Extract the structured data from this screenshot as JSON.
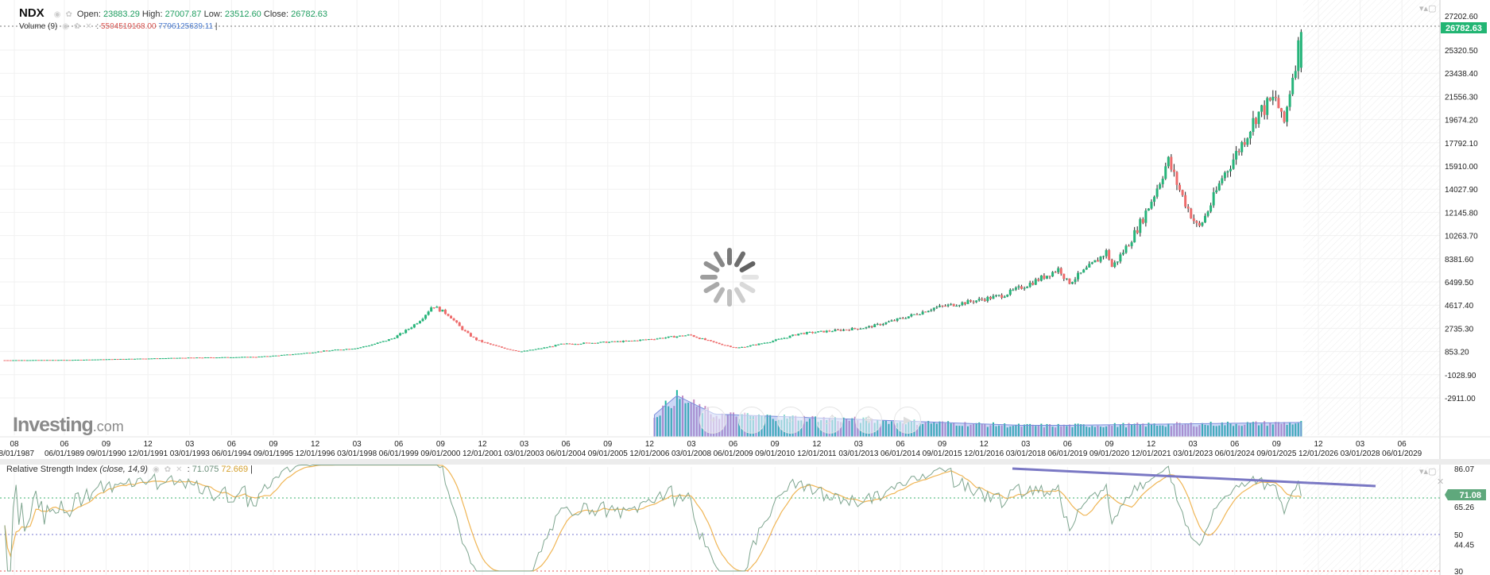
{
  "header": {
    "symbol": "NDX",
    "open_label": "Open:",
    "open": "23883.29",
    "high_label": "High:",
    "high": "27007.87",
    "low_label": "Low:",
    "low": "23512.60",
    "close_label": "Close:",
    "close": "26782.63",
    "volume_label": "Volume (9)",
    "volume_value": "5504519168.00",
    "volume_ma": "7796125639.11"
  },
  "logo": {
    "brand": "Investing",
    "suffix": ".com"
  },
  "toolbar_icons": [
    "zoom-in-icon",
    "zoom-out-icon",
    "search-icon",
    "share-icon",
    "move-icon",
    "play-icon"
  ],
  "rsi": {
    "title": "Relative Strength Index",
    "params": "(close, 14,9)",
    "value": "71.075",
    "ma": "72.669",
    "badge": "71.08"
  },
  "colors": {
    "up": "#26b47a",
    "down": "#ee6b6b",
    "rsi_line": "#7ea58f",
    "rsi_ma": "#f0b656",
    "trend": "#7a78c4",
    "badge": "#22b573"
  },
  "chart_data": {
    "type": "candlestick",
    "title": "NDX",
    "interval": "monthly",
    "price_axis_ticks": [
      "27202.60",
      "25320.50",
      "23438.40",
      "21556.30",
      "19674.20",
      "17792.10",
      "15910.00",
      "14027.90",
      "12145.80",
      "10263.70",
      "8381.60",
      "6499.50",
      "4617.40",
      "2735.30",
      "853.20",
      "-1028.90",
      "-2911.00"
    ],
    "current_price": "26782.63",
    "time_axis": [
      [
        "08",
        "08/01/1987"
      ],
      [
        "06",
        "06/01/1989"
      ],
      [
        "09",
        "09/01/1990"
      ],
      [
        "12",
        "12/01/1991"
      ],
      [
        "03",
        "03/01/1993"
      ],
      [
        "06",
        "06/01/1994"
      ],
      [
        "09",
        "09/01/1995"
      ],
      [
        "12",
        "12/01/1996"
      ],
      [
        "03",
        "03/01/1998"
      ],
      [
        "06",
        "06/01/1999"
      ],
      [
        "09",
        "09/01/2000"
      ],
      [
        "12",
        "12/01/2001"
      ],
      [
        "03",
        "03/01/2003"
      ],
      [
        "06",
        "06/01/2004"
      ],
      [
        "09",
        "09/01/2005"
      ],
      [
        "12",
        "12/01/2006"
      ],
      [
        "03",
        "03/01/2008"
      ],
      [
        "06",
        "06/01/2009"
      ],
      [
        "09",
        "09/01/2010"
      ],
      [
        "12",
        "12/01/2011"
      ],
      [
        "03",
        "03/01/2013"
      ],
      [
        "06",
        "06/01/2014"
      ],
      [
        "09",
        "09/01/2015"
      ],
      [
        "12",
        "12/01/2016"
      ],
      [
        "03",
        "03/01/2018"
      ],
      [
        "06",
        "06/01/2019"
      ],
      [
        "09",
        "09/01/2020"
      ],
      [
        "12",
        "12/01/2021"
      ],
      [
        "03",
        "03/01/2023"
      ],
      [
        "06",
        "06/01/2024"
      ],
      [
        "09",
        "09/01/2025"
      ],
      [
        "12",
        "12/01/2026"
      ],
      [
        "03",
        "03/01/2028"
      ],
      [
        "06",
        "06/01/2029"
      ]
    ],
    "price_anchors": [
      [
        1987.6,
        150
      ],
      [
        1989.5,
        170
      ],
      [
        1991,
        250
      ],
      [
        1993,
        350
      ],
      [
        1995,
        420
      ],
      [
        1997,
        900
      ],
      [
        1998,
        1150
      ],
      [
        1999,
        1900
      ],
      [
        1999.9,
        3600
      ],
      [
        2000.2,
        4600
      ],
      [
        2000.7,
        3800
      ],
      [
        2001.5,
        1800
      ],
      [
        2002.8,
        850
      ],
      [
        2004,
        1450
      ],
      [
        2006,
        1700
      ],
      [
        2007.8,
        2200
      ],
      [
        2009.2,
        1150
      ],
      [
        2011,
        2300
      ],
      [
        2013,
        2800
      ],
      [
        2015,
        4400
      ],
      [
        2017,
        5400
      ],
      [
        2018.7,
        7600
      ],
      [
        2018.95,
        6400
      ],
      [
        2020.1,
        9000
      ],
      [
        2020.25,
        7700
      ],
      [
        2021.9,
        16400
      ],
      [
        2022.8,
        10800
      ],
      [
        2023.5,
        15000
      ],
      [
        2024.5,
        20000
      ],
      [
        2025.1,
        21500
      ],
      [
        2025.3,
        19000
      ],
      [
        2025.55,
        23000
      ],
      [
        2025.83,
        26782.63
      ]
    ],
    "volume_start": 2006.7,
    "rsi_axis_ticks": [
      "86.07",
      "65.26",
      "50",
      "44.45",
      "30"
    ],
    "rsi_levels": [
      70,
      50,
      30
    ]
  }
}
